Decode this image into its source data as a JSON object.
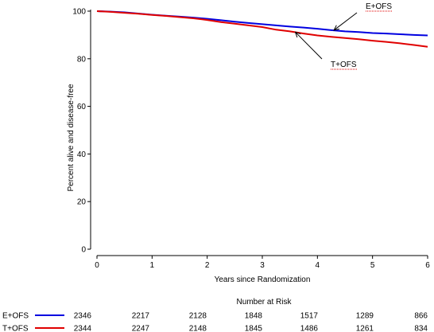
{
  "chart_data": {
    "type": "line",
    "title": "",
    "xlabel": "Years since Randomization",
    "ylabel": "Percent alive and disease-free",
    "xlim": [
      0,
      6
    ],
    "ylim": [
      0,
      100
    ],
    "x_ticks": [
      "0",
      "1",
      "2",
      "3",
      "4",
      "5",
      "6"
    ],
    "y_ticks": [
      "0",
      "20",
      "40",
      "60",
      "80",
      "100"
    ],
    "grid": false,
    "series": [
      {
        "name": "E+OFS",
        "color": "#0000e0",
        "x": [
          0,
          0.25,
          0.5,
          0.75,
          1,
          1.25,
          1.5,
          1.75,
          2,
          2.25,
          2.5,
          2.75,
          3,
          3.25,
          3.5,
          3.75,
          4,
          4.25,
          4.5,
          4.75,
          5,
          5.25,
          5.5,
          5.75,
          6
        ],
        "y": [
          100,
          99.8,
          99.5,
          99.0,
          98.5,
          98.1,
          97.7,
          97.3,
          96.8,
          96.2,
          95.6,
          95.0,
          94.5,
          94.0,
          93.5,
          93.1,
          92.6,
          92.0,
          91.5,
          91.2,
          90.8,
          90.6,
          90.3,
          90.0,
          89.8
        ]
      },
      {
        "name": "T+OFS",
        "color": "#e00000",
        "x": [
          0,
          0.25,
          0.5,
          0.75,
          1,
          1.25,
          1.5,
          1.75,
          2,
          2.25,
          2.5,
          2.75,
          3,
          3.25,
          3.5,
          3.75,
          4,
          4.25,
          4.5,
          4.75,
          5,
          5.25,
          5.5,
          5.75,
          6
        ],
        "y": [
          100,
          99.7,
          99.3,
          98.9,
          98.4,
          98.0,
          97.5,
          97.0,
          96.3,
          95.4,
          94.7,
          94.0,
          93.3,
          92.2,
          91.5,
          90.6,
          89.8,
          89.2,
          88.7,
          88.2,
          87.6,
          87.1,
          86.5,
          85.8,
          85.0
        ]
      }
    ],
    "annotations": [
      {
        "text": "E+OFS",
        "series": 0,
        "target_x": 4.3,
        "target_y": 92.0
      },
      {
        "text": "T+OFS",
        "series": 1,
        "target_x": 3.6,
        "target_y": 91.2
      }
    ],
    "risk_table": {
      "title": "Number at Risk",
      "rows": [
        {
          "name": "E+OFS",
          "color": "#0000e0",
          "values": [
            "2346",
            "2217",
            "2128",
            "1848",
            "1517",
            "1289",
            "866"
          ]
        },
        {
          "name": "T+OFS",
          "color": "#e00000",
          "values": [
            "2344",
            "2247",
            "2148",
            "1845",
            "1486",
            "1261",
            "834"
          ]
        }
      ]
    }
  }
}
